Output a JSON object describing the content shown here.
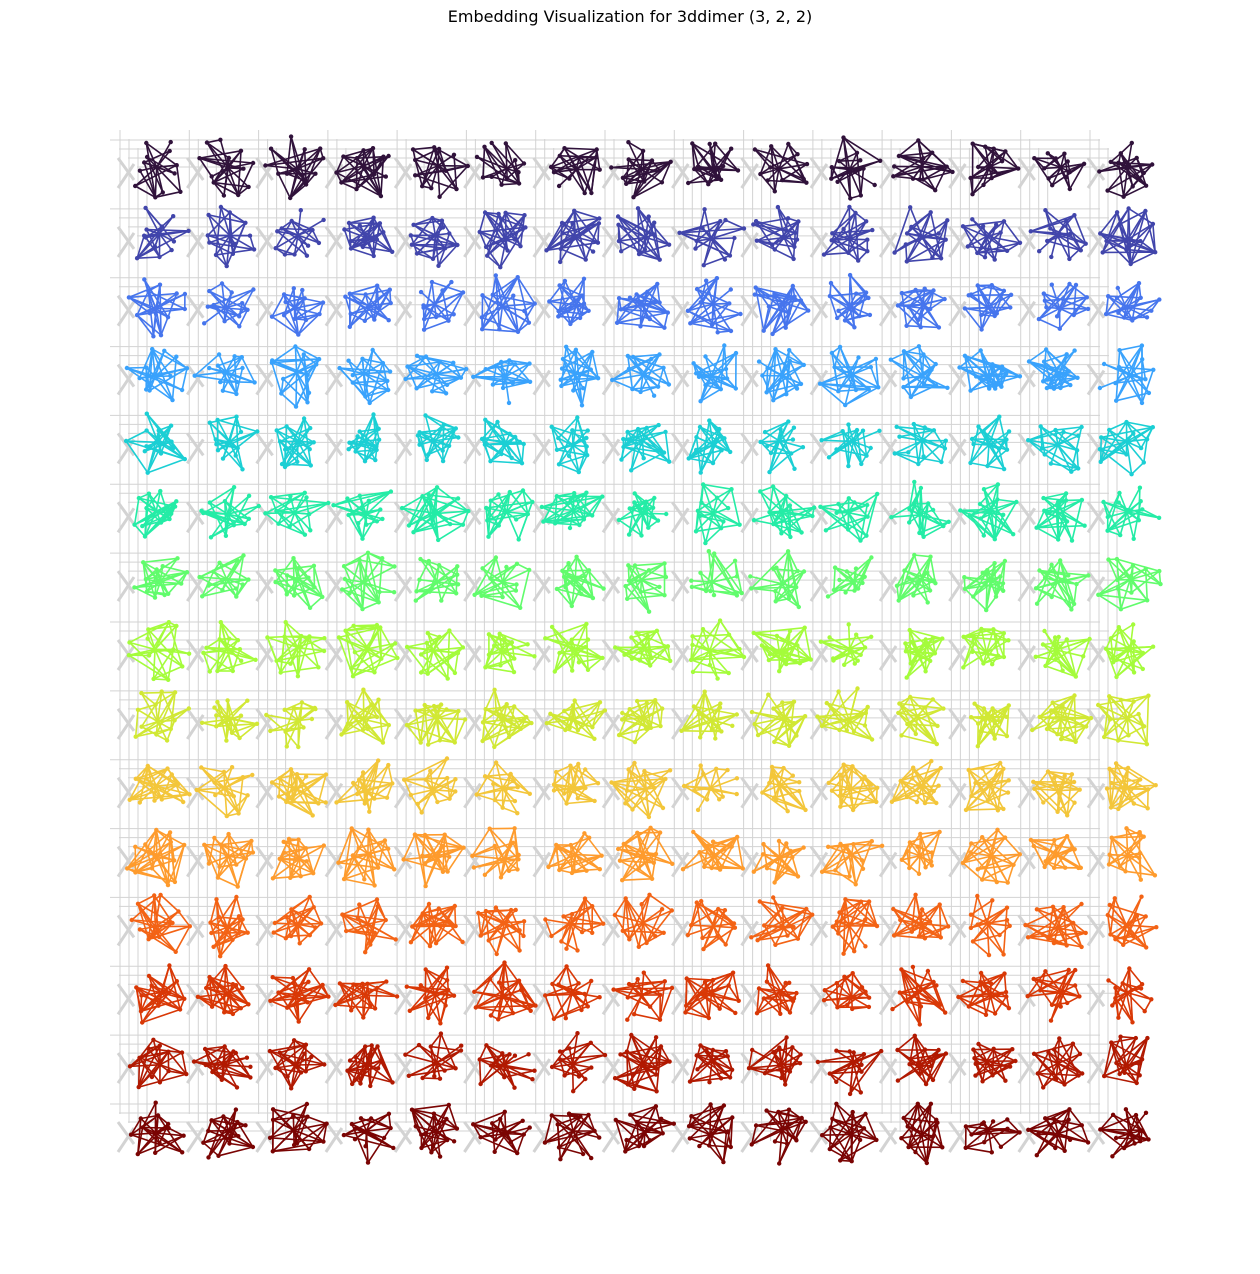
{
  "figure": {
    "title": "Embedding Visualization for 3ddimer (3, 2, 2)"
  },
  "graph": {
    "background_grid_color": "#d3d3d3",
    "grid_rows": 15,
    "grid_cols": 15,
    "colormap": "turbo",
    "colormap_stops": [
      "#30123b",
      "#4145ab",
      "#4675ed",
      "#39a2fc",
      "#1bcfd4",
      "#24eca6",
      "#61fc6c",
      "#a4fc3b",
      "#d1e834",
      "#f3c63a",
      "#fe9b2d",
      "#f36315",
      "#d93806",
      "#b11901",
      "#7a0403"
    ],
    "unit_cell_nodes_per_cell": 12
  }
}
